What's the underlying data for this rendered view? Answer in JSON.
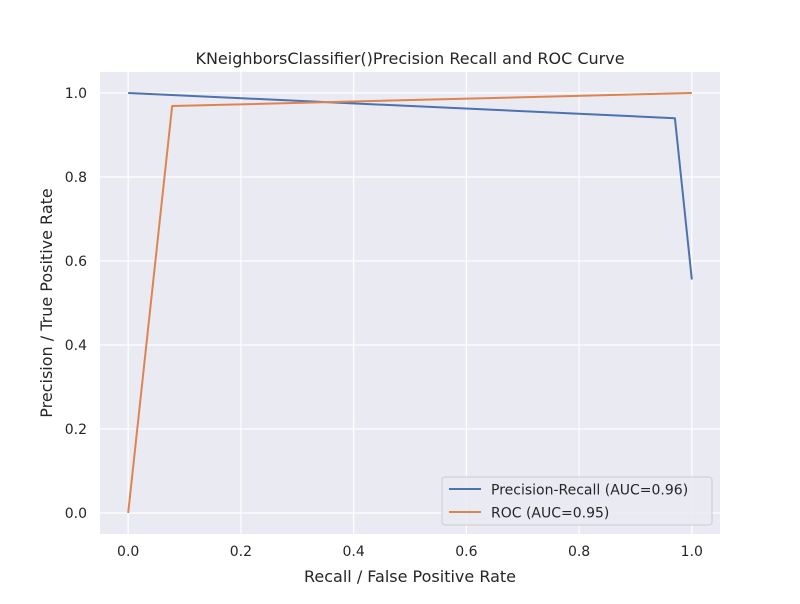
{
  "chart_data": {
    "type": "line",
    "title": "KNeighborsClassifier()Precision Recall and ROC Curve",
    "xlabel": "Recall / False Positive Rate",
    "ylabel": "Precision / True Positive Rate",
    "xlim": [
      -0.05,
      1.05
    ],
    "ylim": [
      -0.05,
      1.05
    ],
    "xticks": [
      0.0,
      0.2,
      0.4,
      0.6,
      0.8,
      1.0
    ],
    "xtick_labels": [
      "0.0",
      "0.2",
      "0.4",
      "0.6",
      "0.8",
      "1.0"
    ],
    "yticks": [
      0.0,
      0.2,
      0.4,
      0.6,
      0.8,
      1.0
    ],
    "ytick_labels": [
      "0.0",
      "0.2",
      "0.4",
      "0.6",
      "0.8",
      "1.0"
    ],
    "grid": true,
    "legend_position": "lower-right",
    "background": "#eaeaf2",
    "series": [
      {
        "name": "Precision-Recall (AUC=0.96)",
        "color": "#4c72b0",
        "x": [
          0.0,
          0.97,
          1.0
        ],
        "y": [
          1.0,
          0.94,
          0.556
        ]
      },
      {
        "name": "ROC (AUC=0.95)",
        "color": "#dd8452",
        "x": [
          0.0,
          0.078,
          1.0
        ],
        "y": [
          0.0,
          0.969,
          1.0
        ]
      }
    ]
  }
}
